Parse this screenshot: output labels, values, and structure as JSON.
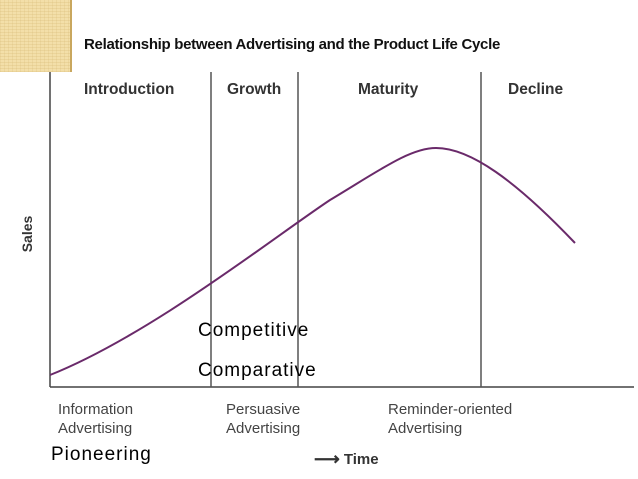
{
  "title": "Relationship between Advertising and the Product Life Cycle",
  "stages": [
    "Introduction",
    "Growth",
    "Maturity",
    "Decline"
  ],
  "y_axis_label": "Sales",
  "x_axis_label": "Time",
  "advertising_types": [
    {
      "line1": "Information",
      "line2": "Advertising"
    },
    {
      "line1": "Persuasive",
      "line2": "Advertising"
    },
    {
      "line1": "Reminder-oriented",
      "line2": "Advertising"
    }
  ],
  "overlay_labels": {
    "competitive": "Competitive",
    "comparative": "Comparative",
    "pioneering": "Pioneering"
  },
  "colors": {
    "curve": "#6a2a6a",
    "axis": "#444444",
    "divider": "#555555",
    "corner_accent": "#f3dfa9"
  },
  "icons": {
    "time_arrow": "arrow-right-icon"
  }
}
